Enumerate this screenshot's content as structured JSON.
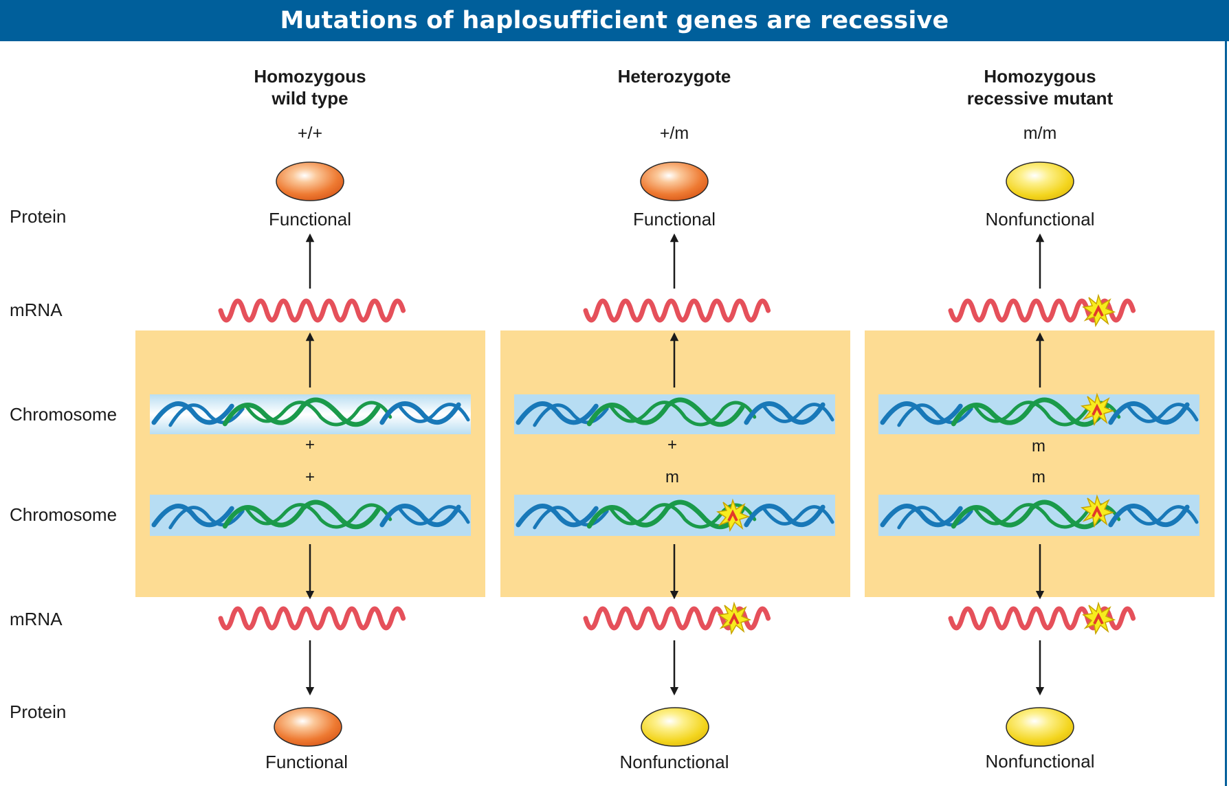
{
  "title": "Mutations of haplosufficient genes are recessive",
  "row_labels": {
    "protein_top": "Protein",
    "mrna_top": "mRNA",
    "chromosome_1": "Chromosome",
    "chromosome_2": "Chromosome",
    "mrna_bottom": "mRNA",
    "protein_bottom": "Protein"
  },
  "columns": [
    {
      "title_line1": "Homozygous",
      "title_line2": "wild type",
      "genotype": "+/+",
      "protein_top": "Functional",
      "protein_bottom": "Functional",
      "allele_1": "+",
      "allele_2": "+"
    },
    {
      "title_line1": "Heterozygote",
      "title_line2": "",
      "genotype": "+/m",
      "protein_top": "Functional",
      "protein_bottom": "Nonfunctional",
      "allele_1": "+",
      "allele_2": "m"
    },
    {
      "title_line1": "Homozygous",
      "title_line2": "recessive mutant",
      "genotype": "m/m",
      "protein_top": "Nonfunctional",
      "protein_bottom": "Nonfunctional",
      "allele_1": "m",
      "allele_2": "m"
    }
  ],
  "colors": {
    "banner": "#005f9b",
    "panel": "#fddc93",
    "functional_protein": "#e8702a",
    "nonfunctional_protein": "#f2d21c",
    "mrna": "#e5505a",
    "dna_strand_blue": "#1878b8",
    "dna_strand_green": "#1a9a4a",
    "mutation_star": "#f7ec1e"
  }
}
